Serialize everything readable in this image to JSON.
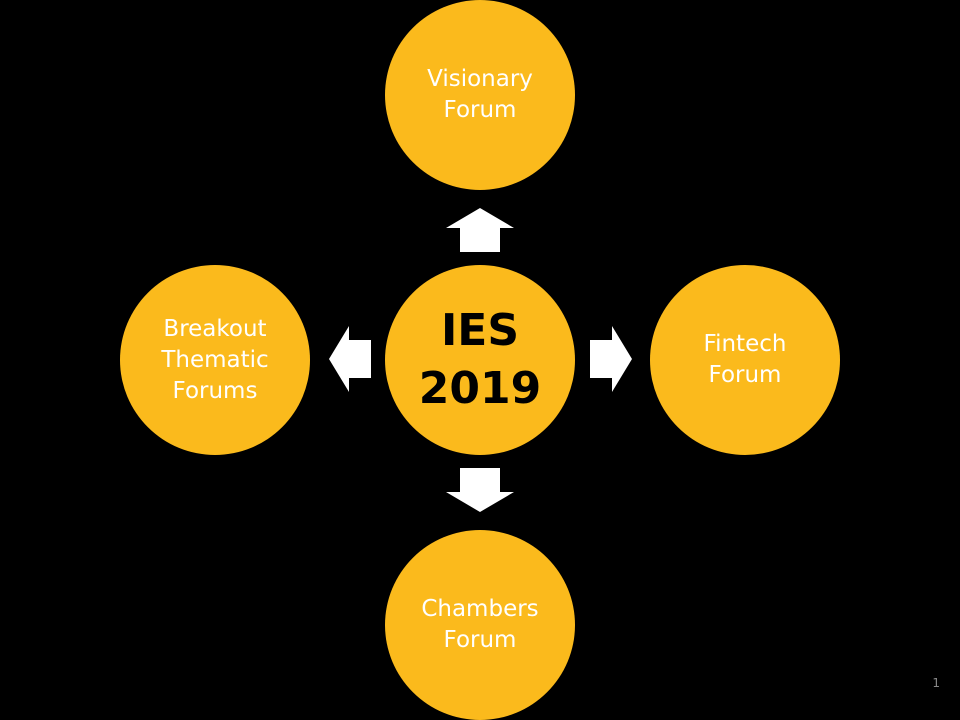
{
  "center": {
    "line1": "IES",
    "line2": "2019"
  },
  "nodes": {
    "top": "Visionary\nForum",
    "right": "Fintech\nForum",
    "bottom": "Chambers\nForum",
    "left": "Breakout\nThematic\nForums"
  },
  "page_number": "1",
  "colors": {
    "background": "#000000",
    "node_fill": "#FBBA1C",
    "arrow_fill": "#FFFFFF",
    "node_text": "#FFFFFF",
    "center_text": "#000000"
  }
}
